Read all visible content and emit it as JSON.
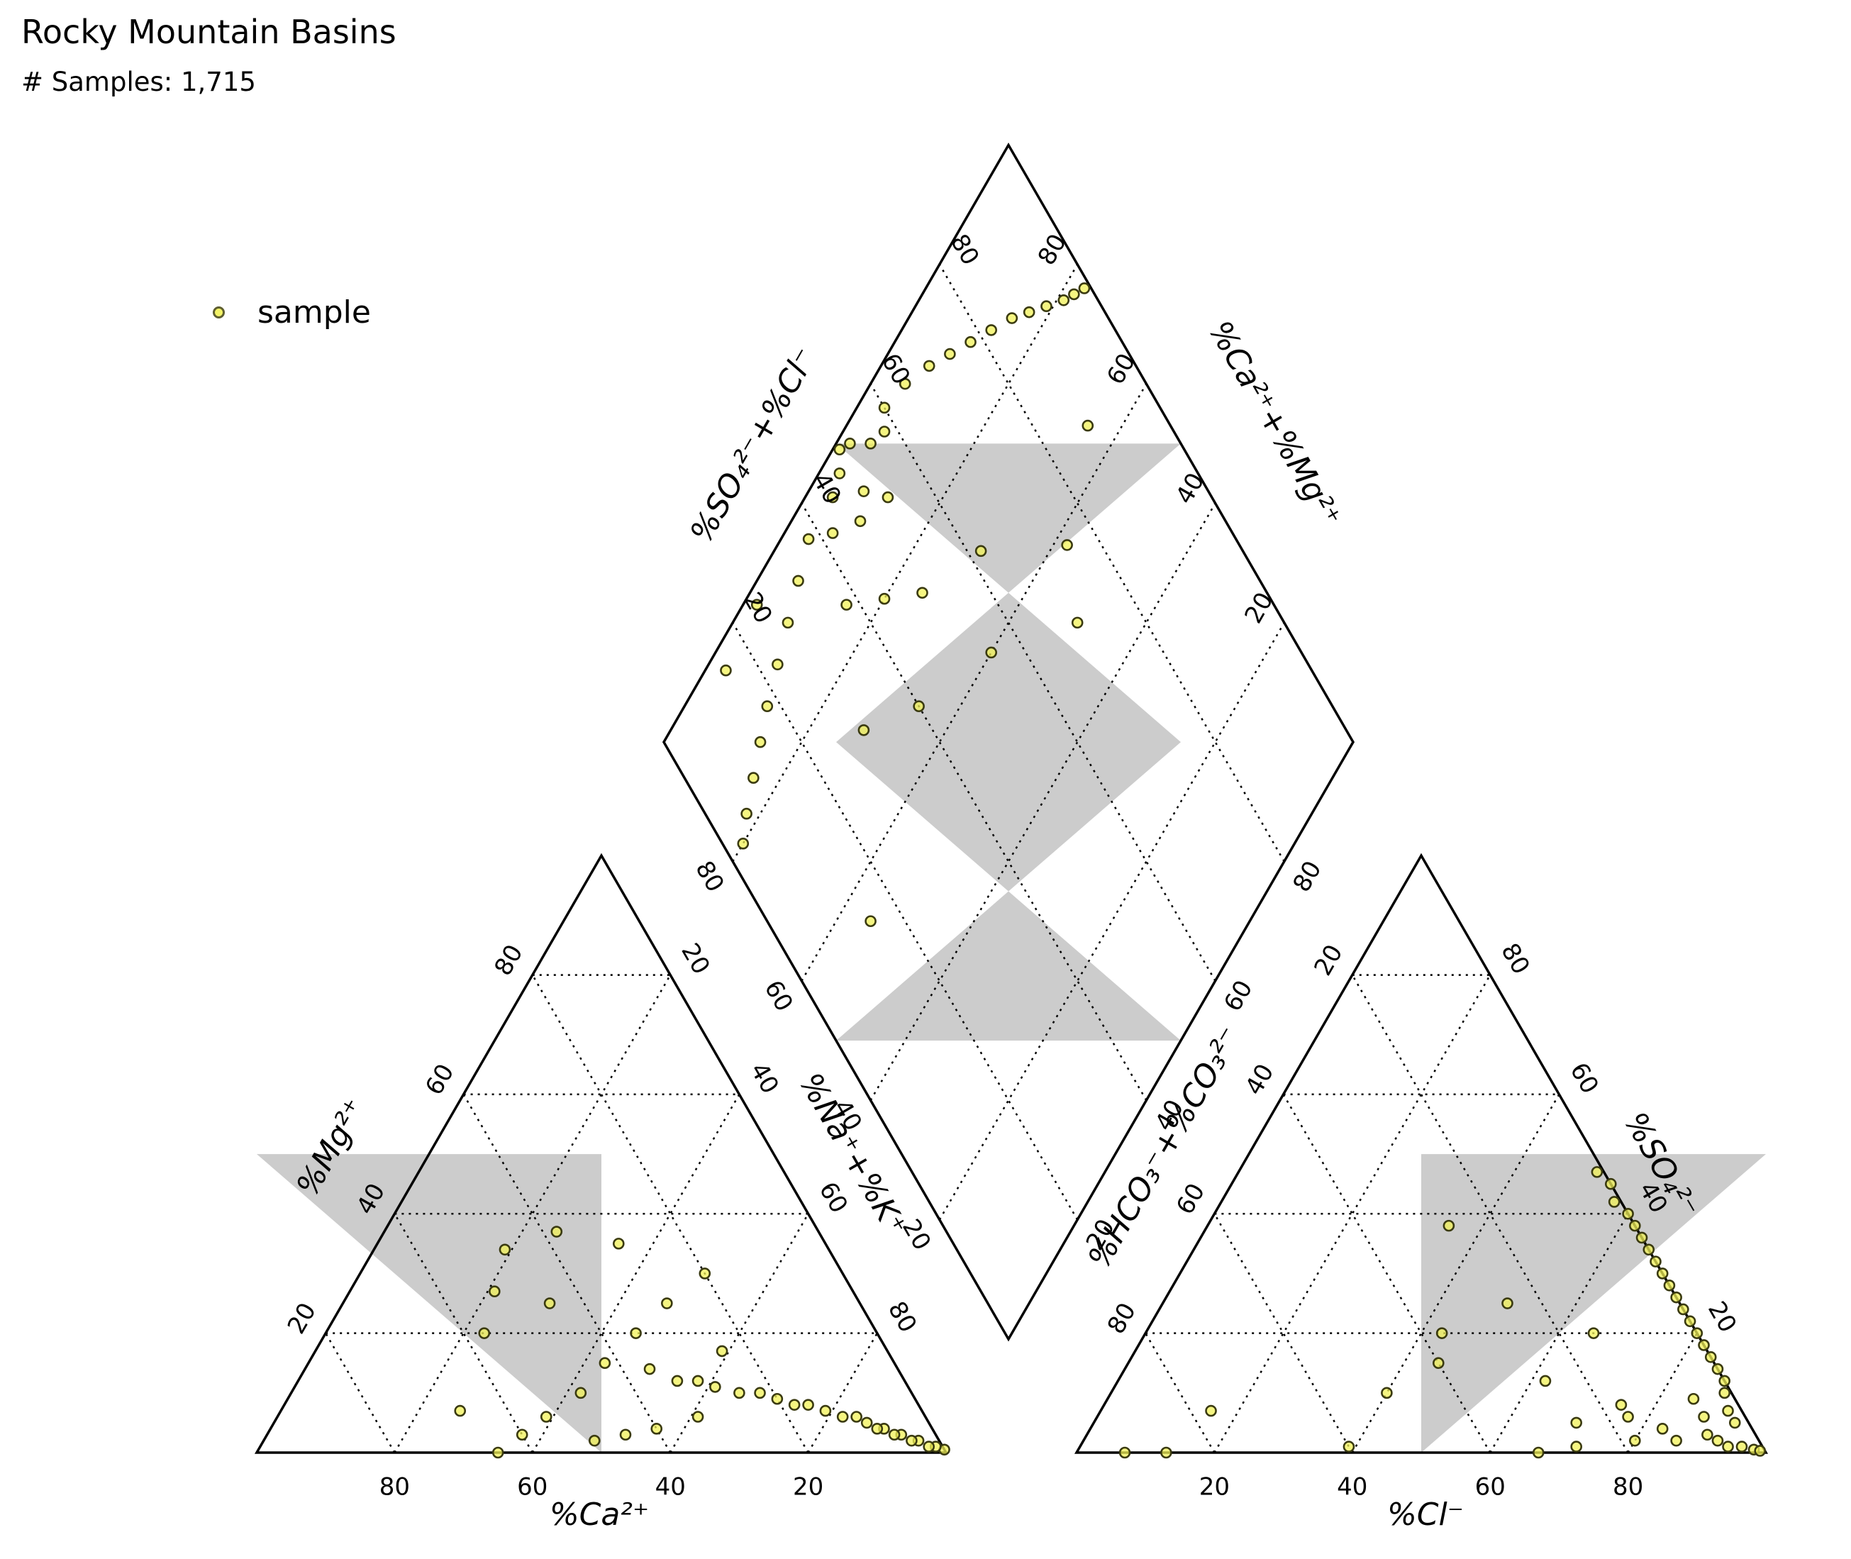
{
  "title": "Rocky Mountain Basins",
  "subtitle": "# Samples: 1,715",
  "legend": {
    "label": "sample"
  },
  "colors": {
    "marker_fill": "#f2f257",
    "marker_edge": "#3a3a10",
    "zone_fill": "#cccccc",
    "frame": "#000000"
  },
  "chart_data": {
    "type": "scatter",
    "subtype": "piper-diagram",
    "title": "Rocky Mountain Basins",
    "subtitle": "# Samples: 1,715",
    "series": [
      {
        "name": "sample",
        "color": "#f2f257"
      }
    ],
    "ticks": [
      20,
      40,
      60,
      80
    ],
    "cation_triangle": {
      "xlabel": "%Ca²⁺",
      "left_label": "%Mg²⁺",
      "right_label": "%Na⁺+%K⁺",
      "points": [
        {
          "ca": 0.0,
          "mg": 0.5,
          "na": 99.5
        },
        {
          "ca": 1,
          "mg": 1,
          "na": 98
        },
        {
          "ca": 2,
          "mg": 1,
          "na": 97
        },
        {
          "ca": 3,
          "mg": 2,
          "na": 95
        },
        {
          "ca": 4,
          "mg": 2,
          "na": 94
        },
        {
          "ca": 5,
          "mg": 3,
          "na": 92
        },
        {
          "ca": 6,
          "mg": 3,
          "na": 91
        },
        {
          "ca": 7,
          "mg": 4,
          "na": 89
        },
        {
          "ca": 8,
          "mg": 4,
          "na": 88
        },
        {
          "ca": 9,
          "mg": 5,
          "na": 86
        },
        {
          "ca": 10,
          "mg": 6,
          "na": 84
        },
        {
          "ca": 12,
          "mg": 6,
          "na": 82
        },
        {
          "ca": 14,
          "mg": 7,
          "na": 79
        },
        {
          "ca": 16,
          "mg": 8,
          "na": 76
        },
        {
          "ca": 18,
          "mg": 8,
          "na": 74
        },
        {
          "ca": 20,
          "mg": 9,
          "na": 71
        },
        {
          "ca": 22,
          "mg": 10,
          "na": 68
        },
        {
          "ca": 25,
          "mg": 10,
          "na": 65
        },
        {
          "ca": 28,
          "mg": 11,
          "na": 61
        },
        {
          "ca": 30,
          "mg": 12,
          "na": 58
        },
        {
          "ca": 33,
          "mg": 12,
          "na": 55
        },
        {
          "ca": 36,
          "mg": 14,
          "na": 50
        },
        {
          "ca": 40,
          "mg": 4,
          "na": 56
        },
        {
          "ca": 45,
          "mg": 3,
          "na": 52
        },
        {
          "ca": 50,
          "mg": 2,
          "na": 48
        },
        {
          "ca": 55,
          "mg": 6,
          "na": 39
        },
        {
          "ca": 60,
          "mg": 3,
          "na": 37
        },
        {
          "ca": 65,
          "mg": 0,
          "na": 35
        },
        {
          "ca": 67,
          "mg": 7,
          "na": 26
        },
        {
          "ca": 57,
          "mg": 20,
          "na": 23
        },
        {
          "ca": 52,
          "mg": 27,
          "na": 21
        },
        {
          "ca": 47,
          "mg": 34,
          "na": 19
        },
        {
          "ca": 38,
          "mg": 37,
          "na": 25
        },
        {
          "ca": 30,
          "mg": 35,
          "na": 35
        },
        {
          "ca": 45,
          "mg": 25,
          "na": 30
        },
        {
          "ca": 35,
          "mg": 20,
          "na": 45
        },
        {
          "ca": 28,
          "mg": 25,
          "na": 47
        },
        {
          "ca": 20,
          "mg": 30,
          "na": 50
        },
        {
          "ca": 24,
          "mg": 17,
          "na": 59
        },
        {
          "ca": 42,
          "mg": 15,
          "na": 43
        },
        {
          "ca": 48,
          "mg": 10,
          "na": 42
        },
        {
          "ca": 33,
          "mg": 6,
          "na": 61
        }
      ]
    },
    "anion_triangle": {
      "xlabel": "%Cl⁻",
      "left_label": "%HCO₃⁻+%CO₃²⁻",
      "right_label": "%SO₄²⁻",
      "points": [
        {
          "cl": 7,
          "so4": 0
        },
        {
          "cl": 13,
          "so4": 0
        },
        {
          "cl": 16,
          "so4": 7
        },
        {
          "cl": 39,
          "so4": 1
        },
        {
          "cl": 67,
          "so4": 0
        },
        {
          "cl": 72,
          "so4": 1
        },
        {
          "cl": 70,
          "so4": 5
        },
        {
          "cl": 75,
          "so4": 8
        },
        {
          "cl": 80,
          "so4": 2
        },
        {
          "cl": 83,
          "so4": 4
        },
        {
          "cl": 86,
          "so4": 2
        },
        {
          "cl": 88,
          "so4": 6
        },
        {
          "cl": 90,
          "so4": 3
        },
        {
          "cl": 92,
          "so4": 2
        },
        {
          "cl": 94,
          "so4": 1
        },
        {
          "cl": 96,
          "so4": 1
        },
        {
          "cl": 98,
          "so4": 0.5
        },
        {
          "cl": 99,
          "so4": 0.3
        },
        {
          "cl": 93,
          "so4": 5
        },
        {
          "cl": 91,
          "so4": 7
        },
        {
          "cl": 89,
          "so4": 10
        },
        {
          "cl": 88,
          "so4": 12
        },
        {
          "cl": 86,
          "so4": 14
        },
        {
          "cl": 84,
          "so4": 16
        },
        {
          "cl": 82,
          "so4": 18
        },
        {
          "cl": 80,
          "so4": 20
        },
        {
          "cl": 78,
          "so4": 22
        },
        {
          "cl": 76,
          "so4": 24
        },
        {
          "cl": 74,
          "so4": 26
        },
        {
          "cl": 72,
          "so4": 28
        },
        {
          "cl": 70,
          "so4": 30
        },
        {
          "cl": 68,
          "so4": 32
        },
        {
          "cl": 66,
          "so4": 34
        },
        {
          "cl": 64,
          "so4": 36
        },
        {
          "cl": 62,
          "so4": 38
        },
        {
          "cl": 60,
          "so4": 40
        },
        {
          "cl": 57,
          "so4": 42
        },
        {
          "cl": 55,
          "so4": 45
        },
        {
          "cl": 52,
          "so4": 47
        },
        {
          "cl": 45,
          "so4": 15
        },
        {
          "cl": 40,
          "so4": 10
        },
        {
          "cl": 43,
          "so4": 20
        },
        {
          "cl": 35,
          "so4": 38
        },
        {
          "cl": 50,
          "so4": 25
        },
        {
          "cl": 62,
          "so4": 12
        },
        {
          "cl": 65,
          "so4": 20
        },
        {
          "cl": 77,
          "so4": 6
        },
        {
          "cl": 85,
          "so4": 9
        }
      ]
    },
    "diamond": {
      "left_label": "%SO₄²⁻+%Cl⁻",
      "right_label": "%Ca²⁺+%Mg²⁺",
      "lower_left_label": "%Na⁺+%K⁺",
      "lower_right_label": "%HCO₃⁻+%CO₃²⁻",
      "points": [
        {
          "a": 99,
          "c": 50
        },
        {
          "a": 97,
          "c": 48
        },
        {
          "a": 96,
          "c": 45
        },
        {
          "a": 98,
          "c": 52
        },
        {
          "a": 95,
          "c": 55
        },
        {
          "a": 93,
          "c": 42
        },
        {
          "a": 94,
          "c": 58
        },
        {
          "a": 92,
          "c": 50
        },
        {
          "a": 90,
          "c": 47
        },
        {
          "a": 88,
          "c": 53
        },
        {
          "a": 96,
          "c": 60
        },
        {
          "a": 95,
          "c": 65
        },
        {
          "a": 93,
          "c": 70
        },
        {
          "a": 91,
          "c": 74
        },
        {
          "a": 89,
          "c": 78
        },
        {
          "a": 87,
          "c": 82
        },
        {
          "a": 85,
          "c": 86
        },
        {
          "a": 83,
          "c": 89
        },
        {
          "a": 81,
          "c": 92
        },
        {
          "a": 79,
          "c": 95
        },
        {
          "a": 78,
          "c": 97
        },
        {
          "a": 77,
          "c": 99
        },
        {
          "a": 96,
          "c": 38
        },
        {
          "a": 94,
          "c": 33
        },
        {
          "a": 92,
          "c": 28
        },
        {
          "a": 90,
          "c": 23
        },
        {
          "a": 88,
          "c": 18
        },
        {
          "a": 86,
          "c": 14
        },
        {
          "a": 84,
          "c": 10
        },
        {
          "a": 82,
          "c": 6
        },
        {
          "a": 80,
          "c": 3
        },
        {
          "a": 85,
          "c": 38
        },
        {
          "a": 80,
          "c": 44
        },
        {
          "a": 75,
          "c": 50
        },
        {
          "a": 70,
          "c": 62
        },
        {
          "a": 72,
          "c": 30
        },
        {
          "a": 66,
          "c": 40
        },
        {
          "a": 60,
          "c": 55
        },
        {
          "a": 58,
          "c": 75
        },
        {
          "a": 65,
          "c": 88
        },
        {
          "a": 55,
          "c": 15
        },
        {
          "a": 50,
          "c": 70
        },
        {
          "a": 98,
          "c": 25
        },
        {
          "a": 97,
          "c": 15
        }
      ]
    }
  }
}
